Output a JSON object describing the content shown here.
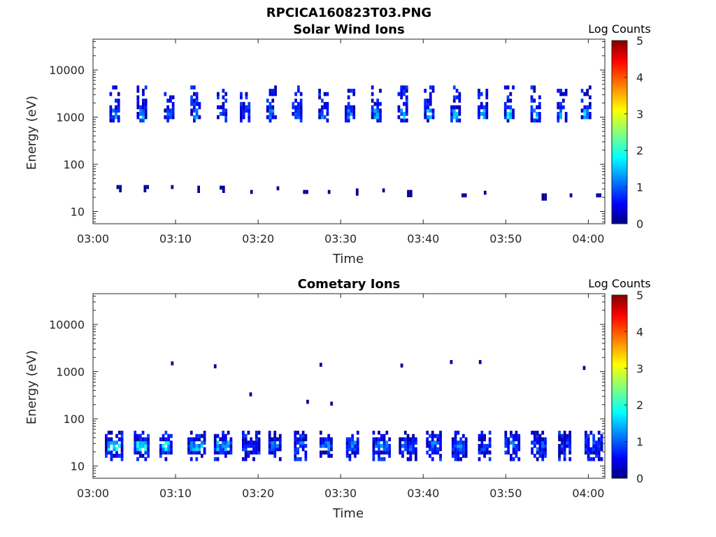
{
  "figure_title": "RPCICA160823T03.PNG",
  "colors": {
    "colormap": [
      "#000080",
      "#0000ff",
      "#00ffff",
      "#ffff00",
      "#ff0000",
      "#800000"
    ],
    "axes": "#262626",
    "background": "#ffffff"
  },
  "chart_data": [
    {
      "type": "heatmap",
      "title": "Solar Wind Ions",
      "xlabel": "Time",
      "ylabel": "Energy (eV)",
      "x_tick_labels": [
        "03:00",
        "03:10",
        "03:20",
        "03:30",
        "03:40",
        "03:50",
        "04:00"
      ],
      "x_tick_values_min": [
        0,
        10,
        20,
        30,
        40,
        50,
        60
      ],
      "xlim_min": [
        0,
        62
      ],
      "y_scale": "log",
      "y_tick_labels": [
        "10",
        "100",
        "1000",
        "10000"
      ],
      "y_tick_values": [
        10,
        100,
        1000,
        10000
      ],
      "ylim": [
        5.5,
        45000
      ],
      "colorbar": {
        "label": "Log Counts",
        "range": [
          0,
          5
        ],
        "tick_labels": [
          "0",
          "1",
          "2",
          "3",
          "4",
          "5"
        ]
      },
      "grid": false,
      "bursts_high": [
        {
          "t": 2.7,
          "v": 1.5
        },
        {
          "t": 6.0,
          "v": 1.6
        },
        {
          "t": 9.3,
          "v": 1.4
        },
        {
          "t": 12.5,
          "v": 1.5
        },
        {
          "t": 15.7,
          "v": 1.2
        },
        {
          "t": 18.5,
          "v": 1.3
        },
        {
          "t": 21.7,
          "v": 1.3
        },
        {
          "t": 24.8,
          "v": 1.3
        },
        {
          "t": 28.0,
          "v": 1.5
        },
        {
          "t": 31.2,
          "v": 1.5
        },
        {
          "t": 34.4,
          "v": 1.5
        },
        {
          "t": 37.6,
          "v": 1.7
        },
        {
          "t": 40.8,
          "v": 1.8
        },
        {
          "t": 44.0,
          "v": 1.9
        },
        {
          "t": 47.3,
          "v": 1.8
        },
        {
          "t": 50.5,
          "v": 2.0
        },
        {
          "t": 53.7,
          "v": 1.9
        },
        {
          "t": 56.9,
          "v": 1.8
        },
        {
          "t": 59.8,
          "v": 1.8
        }
      ],
      "bursts_low": [
        {
          "t": 3.0,
          "e": 33
        },
        {
          "t": 6.3,
          "e": 33
        },
        {
          "t": 9.6,
          "e": 33
        },
        {
          "t": 12.8,
          "e": 32
        },
        {
          "t": 15.5,
          "e": 32
        },
        {
          "t": 19.2,
          "e": 26
        },
        {
          "t": 22.4,
          "e": 31
        },
        {
          "t": 25.6,
          "e": 26
        },
        {
          "t": 28.6,
          "e": 26
        },
        {
          "t": 32.0,
          "e": 28
        },
        {
          "t": 35.2,
          "e": 28
        },
        {
          "t": 38.2,
          "e": 26
        },
        {
          "t": 44.8,
          "e": 22
        },
        {
          "t": 47.5,
          "e": 25
        },
        {
          "t": 54.5,
          "e": 22
        },
        {
          "t": 57.9,
          "e": 22
        },
        {
          "t": 61.1,
          "e": 22
        }
      ]
    },
    {
      "type": "heatmap",
      "title": "Cometary Ions",
      "xlabel": "Time",
      "ylabel": "Energy (eV)",
      "x_tick_labels": [
        "03:00",
        "03:10",
        "03:20",
        "03:30",
        "03:40",
        "03:50",
        "04:00"
      ],
      "x_tick_values_min": [
        0,
        10,
        20,
        30,
        40,
        50,
        60
      ],
      "xlim_min": [
        0,
        62
      ],
      "y_scale": "log",
      "y_tick_labels": [
        "10",
        "100",
        "1000",
        "10000"
      ],
      "y_tick_values": [
        10,
        100,
        1000,
        10000
      ],
      "ylim": [
        5.5,
        45000
      ],
      "colorbar": {
        "label": "Log Counts",
        "range": [
          0,
          5
        ],
        "tick_labels": [
          "0",
          "1",
          "2",
          "3",
          "4",
          "5"
        ]
      },
      "grid": false,
      "bursts_low": [
        {
          "t": 2.4,
          "v": 2.0
        },
        {
          "t": 5.9,
          "v": 2.1
        },
        {
          "t": 9.0,
          "v": 2.0
        },
        {
          "t": 12.4,
          "v": 1.8
        },
        {
          "t": 15.6,
          "v": 1.6
        },
        {
          "t": 19.0,
          "v": 1.2
        },
        {
          "t": 22.2,
          "v": 1.3
        },
        {
          "t": 25.3,
          "v": 1.3
        },
        {
          "t": 28.4,
          "v": 1.4
        },
        {
          "t": 31.6,
          "v": 1.4
        },
        {
          "t": 34.8,
          "v": 1.4
        },
        {
          "t": 38.0,
          "v": 1.4
        },
        {
          "t": 41.3,
          "v": 1.3
        },
        {
          "t": 44.4,
          "v": 1.4
        },
        {
          "t": 47.6,
          "v": 1.3
        },
        {
          "t": 50.8,
          "v": 1.2
        },
        {
          "t": 54.0,
          "v": 1.2
        },
        {
          "t": 57.3,
          "v": 1.1
        },
        {
          "t": 60.5,
          "v": 1.2
        }
      ],
      "isolated_points": [
        {
          "t": 9.6,
          "e": 1500
        },
        {
          "t": 14.8,
          "e": 1300
        },
        {
          "t": 19.1,
          "e": 330
        },
        {
          "t": 26.0,
          "e": 230
        },
        {
          "t": 27.6,
          "e": 1400
        },
        {
          "t": 28.9,
          "e": 210
        },
        {
          "t": 37.4,
          "e": 1350
        },
        {
          "t": 43.4,
          "e": 1600
        },
        {
          "t": 46.9,
          "e": 1600
        },
        {
          "t": 59.5,
          "e": 1200
        }
      ]
    }
  ]
}
